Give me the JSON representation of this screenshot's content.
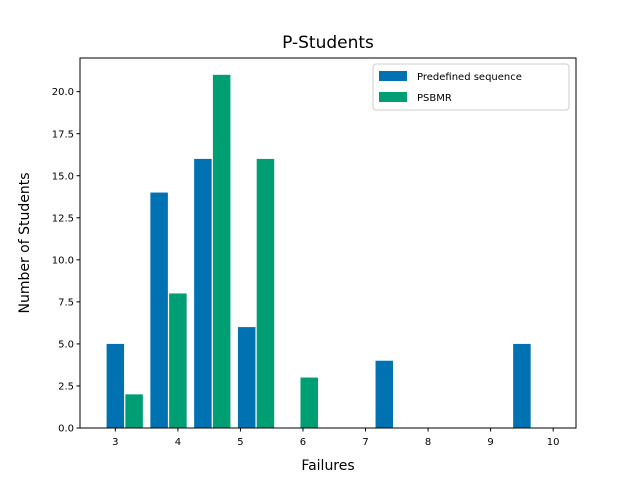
{
  "chart_data": {
    "type": "bar",
    "title": "P-Students",
    "xlabel": "Failures",
    "ylabel": "Number of Students",
    "x_ticks": [
      "3",
      "4",
      "5",
      "6",
      "7",
      "8",
      "9",
      "10"
    ],
    "y_ticks": [
      "0.0",
      "2.5",
      "5.0",
      "7.5",
      "10.0",
      "12.5",
      "15.0",
      "17.5",
      "20.0"
    ],
    "ylim": [
      0,
      22
    ],
    "grid": false,
    "legend_position": "top-right",
    "series": [
      {
        "name": "Predefined sequence",
        "color": "#0072b2",
        "points": [
          {
            "x": 3.0,
            "y": 5
          },
          {
            "x": 3.7,
            "y": 14
          },
          {
            "x": 4.4,
            "y": 16
          },
          {
            "x": 5.1,
            "y": 6
          },
          {
            "x": 7.3,
            "y": 4
          },
          {
            "x": 9.5,
            "y": 5
          }
        ]
      },
      {
        "name": "PSBMR",
        "color": "#009e73",
        "points": [
          {
            "x": 3.3,
            "y": 2
          },
          {
            "x": 4.0,
            "y": 8
          },
          {
            "x": 4.7,
            "y": 21
          },
          {
            "x": 5.4,
            "y": 16
          },
          {
            "x": 6.1,
            "y": 3
          }
        ]
      }
    ]
  }
}
